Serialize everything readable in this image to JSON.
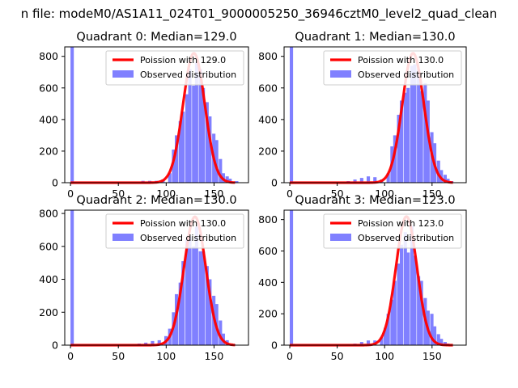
{
  "figure": {
    "suptitle": "n file: modeM0/AS1A11_024T01_9000005250_36946cztM0_level2_quad_clean"
  },
  "colors": {
    "fit": "#ff0000",
    "observed": "#8080ff",
    "axes": "#000000"
  },
  "chart_data": [
    {
      "type": "bar",
      "title": "Quadrant 0: Median=129.0",
      "xlabel": "",
      "ylabel": "",
      "xlim": [
        -6,
        186
      ],
      "ylim": [
        0,
        860
      ],
      "xticks": [
        0,
        50,
        100,
        150
      ],
      "yticks": [
        0,
        200,
        400,
        600,
        800
      ],
      "legend_position": "upper right",
      "grid": false,
      "series": [
        {
          "name": "Poission with 129.0",
          "kind": "line",
          "mean": 129.0,
          "peak": 820
        },
        {
          "name": "Observed distribution",
          "kind": "histogram",
          "bin_width": 3.5,
          "bins": [
            [
              0,
              860
            ],
            [
              74,
              12
            ],
            [
              81,
              12
            ],
            [
              88,
              12
            ],
            [
              95,
              20
            ],
            [
              102,
              60
            ],
            [
              106,
              210
            ],
            [
              109,
              300
            ],
            [
              113,
              390
            ],
            [
              116,
              450
            ],
            [
              120,
              560
            ],
            [
              123,
              720
            ],
            [
              127,
              615
            ],
            [
              130,
              760
            ],
            [
              134,
              720
            ],
            [
              137,
              600
            ],
            [
              141,
              510
            ],
            [
              144,
              420
            ],
            [
              148,
              310
            ],
            [
              151,
              270
            ],
            [
              155,
              150
            ],
            [
              158,
              60
            ],
            [
              162,
              40
            ],
            [
              165,
              25
            ],
            [
              169,
              5
            ],
            [
              172,
              10
            ]
          ]
        }
      ]
    },
    {
      "type": "bar",
      "title": "Quadrant 1: Median=130.0",
      "xlabel": "",
      "ylabel": "",
      "xlim": [
        -6,
        186
      ],
      "ylim": [
        0,
        860
      ],
      "xticks": [
        0,
        50,
        100,
        150
      ],
      "yticks": [
        0,
        200,
        400,
        600,
        800
      ],
      "legend_position": "upper right",
      "grid": false,
      "series": [
        {
          "name": "Poission with 130.0",
          "kind": "line",
          "mean": 130.0,
          "peak": 820
        },
        {
          "name": "Observed distribution",
          "kind": "histogram",
          "bin_width": 3.5,
          "bins": [
            [
              0,
              860
            ],
            [
              60,
              10
            ],
            [
              67,
              20
            ],
            [
              74,
              30
            ],
            [
              81,
              40
            ],
            [
              88,
              35
            ],
            [
              95,
              20
            ],
            [
              102,
              60
            ],
            [
              106,
              230
            ],
            [
              109,
              300
            ],
            [
              113,
              430
            ],
            [
              116,
              520
            ],
            [
              120,
              570
            ],
            [
              123,
              600
            ],
            [
              127,
              740
            ],
            [
              130,
              750
            ],
            [
              134,
              720
            ],
            [
              137,
              580
            ],
            [
              141,
              630
            ],
            [
              144,
              520
            ],
            [
              148,
              320
            ],
            [
              151,
              250
            ],
            [
              155,
              140
            ],
            [
              158,
              80
            ],
            [
              162,
              50
            ],
            [
              165,
              25
            ],
            [
              169,
              10
            ]
          ]
        }
      ]
    },
    {
      "type": "bar",
      "title": "Quadrant 2: Median=130.0",
      "xlabel": "",
      "ylabel": "",
      "xlim": [
        -6,
        186
      ],
      "ylim": [
        0,
        820
      ],
      "xticks": [
        0,
        50,
        100,
        150
      ],
      "yticks": [
        0,
        200,
        400,
        600,
        800
      ],
      "legend_position": "upper right",
      "grid": false,
      "series": [
        {
          "name": "Poission with 130.0",
          "kind": "line",
          "mean": 130.0,
          "peak": 780
        },
        {
          "name": "Observed distribution",
          "kind": "histogram",
          "bin_width": 3.5,
          "bins": [
            [
              0,
              820
            ],
            [
              70,
              10
            ],
            [
              77,
              15
            ],
            [
              84,
              25
            ],
            [
              91,
              30
            ],
            [
              98,
              55
            ],
            [
              102,
              100
            ],
            [
              106,
              200
            ],
            [
              109,
              310
            ],
            [
              113,
              380
            ],
            [
              116,
              510
            ],
            [
              120,
              640
            ],
            [
              123,
              660
            ],
            [
              127,
              600
            ],
            [
              130,
              720
            ],
            [
              134,
              570
            ],
            [
              137,
              570
            ],
            [
              141,
              480
            ],
            [
              144,
              400
            ],
            [
              148,
              300
            ],
            [
              151,
              250
            ],
            [
              155,
              150
            ],
            [
              158,
              70
            ],
            [
              162,
              30
            ],
            [
              165,
              10
            ],
            [
              169,
              5
            ]
          ]
        }
      ]
    },
    {
      "type": "bar",
      "title": "Quadrant 3: Median=123.0",
      "xlabel": "",
      "ylabel": "",
      "xlim": [
        -6,
        186
      ],
      "ylim": [
        0,
        860
      ],
      "xticks": [
        0,
        50,
        100,
        150
      ],
      "yticks": [
        0,
        200,
        400,
        600,
        800
      ],
      "legend_position": "upper right",
      "grid": false,
      "series": [
        {
          "name": "Poission with 123.0",
          "kind": "line",
          "mean": 123.0,
          "peak": 820
        },
        {
          "name": "Observed distribution",
          "kind": "histogram",
          "bin_width": 3.5,
          "bins": [
            [
              0,
              860
            ],
            [
              60,
              5
            ],
            [
              67,
              10
            ],
            [
              74,
              20
            ],
            [
              81,
              30
            ],
            [
              88,
              30
            ],
            [
              95,
              50
            ],
            [
              99,
              110
            ],
            [
              102,
              200
            ],
            [
              106,
              290
            ],
            [
              109,
              410
            ],
            [
              113,
              520
            ],
            [
              116,
              640
            ],
            [
              120,
              720
            ],
            [
              123,
              590
            ],
            [
              127,
              760
            ],
            [
              130,
              570
            ],
            [
              134,
              440
            ],
            [
              137,
              410
            ],
            [
              141,
              300
            ],
            [
              144,
              220
            ],
            [
              148,
              200
            ],
            [
              151,
              120
            ],
            [
              155,
              70
            ],
            [
              158,
              40
            ],
            [
              162,
              20
            ],
            [
              165,
              10
            ]
          ]
        }
      ]
    }
  ]
}
